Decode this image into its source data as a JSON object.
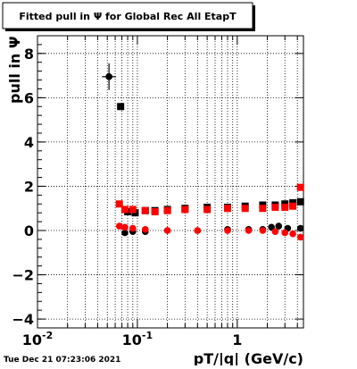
{
  "chart_data": {
    "type": "scatter",
    "title": "Fitted pull in  Ψ  for Global Rec All EtapT",
    "xlabel": "pT/|q| (GeV/c)",
    "ylabel": "pull in  Ψ",
    "x_scale": "log",
    "xlim": [
      0.01,
      4.6
    ],
    "ylim": [
      -4.4,
      8.8
    ],
    "x_ticks": [
      {
        "value": 0.01,
        "base": "10",
        "exp": "-2"
      },
      {
        "value": 0.1,
        "base": "10",
        "exp": "-1"
      },
      {
        "value": 1,
        "base": "1",
        "exp": ""
      }
    ],
    "y_ticks": [
      -4,
      -2,
      0,
      2,
      4,
      6,
      8
    ],
    "y_tick_labels": [
      "−4",
      "−2",
      "0",
      "2",
      "4",
      "6",
      "8"
    ],
    "grid": true,
    "series": [
      {
        "role": "width",
        "marker": "square",
        "color": "#000000",
        "x": [
          0.068,
          0.08,
          0.095,
          0.12,
          0.15,
          0.2,
          0.3,
          0.5,
          0.8,
          1.2,
          1.8,
          2.4,
          3.0,
          3.6,
          4.3
        ],
        "y": [
          5.6,
          0.85,
          0.8,
          0.9,
          0.9,
          0.95,
          1.0,
          1.05,
          1.05,
          1.1,
          1.15,
          1.15,
          1.2,
          1.25,
          1.3
        ]
      },
      {
        "role": "mean",
        "marker": "circle",
        "color": "#000000",
        "x": [
          0.052,
          0.075,
          0.09,
          0.12,
          0.2,
          0.4,
          0.8,
          1.3,
          1.8,
          2.2,
          2.6,
          3.2,
          4.3
        ],
        "y": [
          6.95,
          -0.1,
          -0.05,
          -0.05,
          0.0,
          0.0,
          0.05,
          0.05,
          0.05,
          0.15,
          0.2,
          0.1,
          0.1
        ],
        "yerr": [
          0.6,
          0.15,
          0.08,
          0.05,
          0.05,
          0.05,
          0.05,
          0.05,
          0.05,
          0.05,
          0.05,
          0.05,
          0.1
        ],
        "xerr_log": 0.07
      },
      {
        "role": "width",
        "marker": "square",
        "color": "#ff0000",
        "x": [
          0.066,
          0.075,
          0.09,
          0.12,
          0.15,
          0.2,
          0.3,
          0.5,
          0.8,
          1.2,
          1.8,
          2.4,
          3.0,
          3.6,
          4.3
        ],
        "y": [
          1.2,
          0.95,
          0.95,
          0.9,
          0.85,
          0.9,
          0.95,
          0.95,
          1.0,
          1.0,
          1.0,
          1.05,
          1.05,
          1.1,
          1.95
        ]
      },
      {
        "role": "mean",
        "marker": "circle",
        "color": "#ff0000",
        "x": [
          0.066,
          0.075,
          0.09,
          0.12,
          0.2,
          0.4,
          0.8,
          1.3,
          1.8,
          2.4,
          3.0,
          3.6,
          4.3
        ],
        "y": [
          0.2,
          0.15,
          0.1,
          0.05,
          0.0,
          0.0,
          0.0,
          0.0,
          0.0,
          -0.05,
          -0.1,
          -0.15,
          -0.3
        ],
        "yerr": [
          0.06,
          0.05,
          0.05,
          0.04,
          0.04,
          0.04,
          0.04,
          0.04,
          0.04,
          0.05,
          0.05,
          0.05,
          0.1
        ]
      }
    ]
  },
  "footer": {
    "timestamp": "Tue Dec 21 07:23:06 2021"
  }
}
